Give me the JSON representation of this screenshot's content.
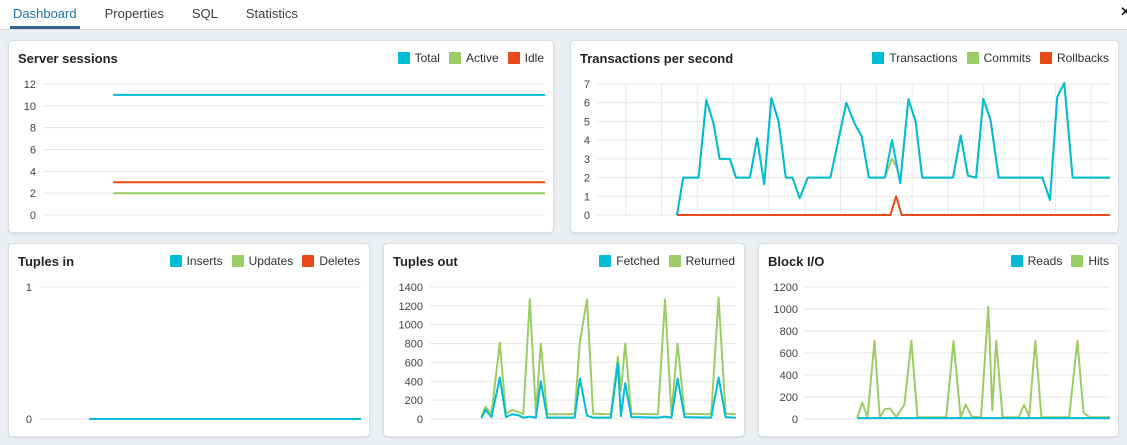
{
  "tab_bar": {
    "tabs": [
      {
        "label": "Dashboard",
        "active": true
      },
      {
        "label": "Properties",
        "active": false
      },
      {
        "label": "SQL",
        "active": false
      },
      {
        "label": "Statistics",
        "active": false
      }
    ],
    "close_label": "✕"
  },
  "colors": {
    "active_tab_text": "#1d73a8",
    "active_tab_underline": "#326690",
    "series_cyan": "#00bcd4",
    "series_green": "#9ccc65",
    "series_orange": "#e64a19",
    "gridline": "#e6e6e6",
    "panel_background": "#ffffff",
    "page_background": "#eceff2"
  },
  "chart_data": [
    {
      "type": "line",
      "title": "Server sessions",
      "xlabel": "",
      "ylabel": "",
      "ylim": [
        0,
        12
      ],
      "yticks": [
        0,
        2,
        4,
        6,
        8,
        10,
        12
      ],
      "grid": true,
      "legend_position": "top-right",
      "series": [
        {
          "name": "Total",
          "color": "#00bcd4",
          "points": [
            [
              0.14,
              11
            ],
            [
              1,
              11
            ]
          ]
        },
        {
          "name": "Active",
          "color": "#9ccc65",
          "points": [
            [
              0.14,
              2
            ],
            [
              1,
              2
            ]
          ]
        },
        {
          "name": "Idle",
          "color": "#e64a19",
          "points": [
            [
              0.14,
              3
            ],
            [
              1,
              3
            ]
          ]
        }
      ]
    },
    {
      "type": "line",
      "title": "Transactions per second",
      "xlabel": "",
      "ylabel": "",
      "ylim": [
        0,
        7
      ],
      "yticks": [
        0,
        1,
        2,
        3,
        4,
        5,
        6,
        7
      ],
      "grid": true,
      "legend_position": "top-right",
      "series": [
        {
          "name": "Transactions",
          "color": "#00bcd4",
          "points": [
            [
              0.156,
              0
            ],
            [
              0.168,
              2
            ],
            [
              0.198,
              2
            ],
            [
              0.213,
              6.15
            ],
            [
              0.227,
              4.9
            ],
            [
              0.239,
              3
            ],
            [
              0.259,
              3
            ],
            [
              0.271,
              2
            ],
            [
              0.298,
              2
            ],
            [
              0.312,
              4.1
            ],
            [
              0.326,
              1.65
            ],
            [
              0.34,
              6.25
            ],
            [
              0.354,
              5.0
            ],
            [
              0.368,
              2
            ],
            [
              0.381,
              2
            ],
            [
              0.395,
              0.9
            ],
            [
              0.411,
              2
            ],
            [
              0.455,
              2
            ],
            [
              0.486,
              6.0
            ],
            [
              0.502,
              4.9
            ],
            [
              0.516,
              4.2
            ],
            [
              0.53,
              2
            ],
            [
              0.561,
              2
            ],
            [
              0.575,
              4.0
            ],
            [
              0.591,
              1.7
            ],
            [
              0.607,
              6.2
            ],
            [
              0.621,
              5.0
            ],
            [
              0.634,
              2
            ],
            [
              0.694,
              2
            ],
            [
              0.709,
              4.25
            ],
            [
              0.723,
              2.1
            ],
            [
              0.739,
              2
            ],
            [
              0.753,
              6.2
            ],
            [
              0.767,
              5.1
            ],
            [
              0.783,
              2
            ],
            [
              0.868,
              2
            ],
            [
              0.883,
              0.8
            ],
            [
              0.897,
              6.3
            ],
            [
              0.911,
              7.05
            ],
            [
              0.927,
              2
            ],
            [
              1,
              2
            ]
          ]
        },
        {
          "name": "Commits",
          "color": "#9ccc65",
          "points": [
            [
              0.156,
              0
            ],
            [
              0.168,
              2
            ],
            [
              0.198,
              2
            ],
            [
              0.213,
              6.15
            ],
            [
              0.227,
              4.9
            ],
            [
              0.239,
              3
            ],
            [
              0.259,
              3
            ],
            [
              0.271,
              2
            ],
            [
              0.298,
              2
            ],
            [
              0.312,
              4.1
            ],
            [
              0.326,
              1.65
            ],
            [
              0.34,
              6.25
            ],
            [
              0.354,
              5.0
            ],
            [
              0.368,
              2
            ],
            [
              0.381,
              2
            ],
            [
              0.395,
              0.9
            ],
            [
              0.411,
              2
            ],
            [
              0.455,
              2
            ],
            [
              0.486,
              6.0
            ],
            [
              0.502,
              4.9
            ],
            [
              0.516,
              4.2
            ],
            [
              0.53,
              2
            ],
            [
              0.561,
              2
            ],
            [
              0.575,
              3.0
            ],
            [
              0.585,
              2.5
            ],
            [
              0.591,
              1.75
            ],
            [
              0.607,
              6.2
            ],
            [
              0.621,
              5.0
            ],
            [
              0.634,
              2
            ],
            [
              0.694,
              2
            ],
            [
              0.709,
              4.25
            ],
            [
              0.723,
              2.1
            ],
            [
              0.739,
              2
            ],
            [
              0.753,
              6.2
            ],
            [
              0.767,
              5.1
            ],
            [
              0.783,
              2
            ],
            [
              0.868,
              2
            ],
            [
              0.883,
              0.8
            ],
            [
              0.897,
              6.3
            ],
            [
              0.911,
              7.05
            ],
            [
              0.927,
              2
            ],
            [
              1,
              2
            ]
          ]
        },
        {
          "name": "Rollbacks",
          "color": "#e64a19",
          "points": [
            [
              0.156,
              0
            ],
            [
              0.572,
              0
            ],
            [
              0.583,
              1.0
            ],
            [
              0.594,
              0
            ],
            [
              1,
              0
            ]
          ]
        }
      ]
    },
    {
      "type": "line",
      "title": "Tuples in",
      "xlabel": "",
      "ylabel": "",
      "ylim": [
        0,
        1
      ],
      "yticks": [
        0,
        1
      ],
      "grid": true,
      "legend_position": "top-right",
      "series": [
        {
          "name": "Inserts",
          "color": "#00bcd4",
          "points": [
            [
              0.156,
              0
            ],
            [
              1,
              0
            ]
          ]
        },
        {
          "name": "Updates",
          "color": "#9ccc65",
          "points": [
            [
              0.156,
              0
            ],
            [
              1,
              0
            ]
          ]
        },
        {
          "name": "Deletes",
          "color": "#e64a19",
          "points": [
            [
              0.156,
              0
            ],
            [
              1,
              0
            ]
          ]
        }
      ]
    },
    {
      "type": "line",
      "title": "Tuples out",
      "xlabel": "",
      "ylabel": "",
      "ylim": [
        0,
        1400
      ],
      "yticks": [
        0,
        200,
        400,
        600,
        800,
        1000,
        1200,
        1400
      ],
      "grid": true,
      "legend_position": "top-right",
      "series": [
        {
          "name": "Fetched",
          "color": "#00bcd4",
          "points": [
            [
              0.168,
              10
            ],
            [
              0.181,
              100
            ],
            [
              0.201,
              20
            ],
            [
              0.228,
              440
            ],
            [
              0.248,
              20
            ],
            [
              0.268,
              50
            ],
            [
              0.289,
              40
            ],
            [
              0.305,
              15
            ],
            [
              0.326,
              25
            ],
            [
              0.346,
              15
            ],
            [
              0.362,
              400
            ],
            [
              0.383,
              15
            ],
            [
              0.453,
              15
            ],
            [
              0.473,
              15
            ],
            [
              0.49,
              430
            ],
            [
              0.513,
              35
            ],
            [
              0.533,
              15
            ],
            [
              0.591,
              15
            ],
            [
              0.614,
              590
            ],
            [
              0.624,
              30
            ],
            [
              0.638,
              380
            ],
            [
              0.658,
              20
            ],
            [
              0.745,
              15
            ],
            [
              0.768,
              25
            ],
            [
              0.789,
              15
            ],
            [
              0.809,
              430
            ],
            [
              0.832,
              20
            ],
            [
              0.919,
              15
            ],
            [
              0.943,
              440
            ],
            [
              0.966,
              20
            ],
            [
              1,
              15
            ]
          ]
        },
        {
          "name": "Returned",
          "color": "#9ccc65",
          "points": [
            [
              0.168,
              20
            ],
            [
              0.181,
              130
            ],
            [
              0.201,
              55
            ],
            [
              0.228,
              810
            ],
            [
              0.248,
              55
            ],
            [
              0.268,
              95
            ],
            [
              0.289,
              75
            ],
            [
              0.305,
              50
            ],
            [
              0.326,
              1270
            ],
            [
              0.346,
              60
            ],
            [
              0.362,
              800
            ],
            [
              0.383,
              50
            ],
            [
              0.453,
              50
            ],
            [
              0.473,
              55
            ],
            [
              0.49,
              820
            ],
            [
              0.513,
              1270
            ],
            [
              0.533,
              55
            ],
            [
              0.591,
              50
            ],
            [
              0.614,
              660
            ],
            [
              0.624,
              300
            ],
            [
              0.638,
              800
            ],
            [
              0.658,
              55
            ],
            [
              0.745,
              50
            ],
            [
              0.768,
              1270
            ],
            [
              0.789,
              55
            ],
            [
              0.809,
              800
            ],
            [
              0.832,
              55
            ],
            [
              0.919,
              50
            ],
            [
              0.943,
              1290
            ],
            [
              0.966,
              55
            ],
            [
              1,
              50
            ]
          ]
        }
      ]
    },
    {
      "type": "line",
      "title": "Block I/O",
      "xlabel": "",
      "ylabel": "",
      "ylim": [
        0,
        1200
      ],
      "yticks": [
        0,
        200,
        400,
        600,
        800,
        1000,
        1200
      ],
      "grid": true,
      "legend_position": "top-right",
      "series": [
        {
          "name": "Reads",
          "color": "#00bcd4",
          "points": [
            [
              0.171,
              8
            ],
            [
              1,
              8
            ]
          ]
        },
        {
          "name": "Hits",
          "color": "#9ccc65",
          "points": [
            [
              0.171,
              10
            ],
            [
              0.188,
              150
            ],
            [
              0.205,
              15
            ],
            [
              0.228,
              710
            ],
            [
              0.245,
              15
            ],
            [
              0.262,
              90
            ],
            [
              0.279,
              95
            ],
            [
              0.299,
              20
            ],
            [
              0.326,
              130
            ],
            [
              0.349,
              710
            ],
            [
              0.369,
              15
            ],
            [
              0.463,
              15
            ],
            [
              0.487,
              710
            ],
            [
              0.51,
              15
            ],
            [
              0.527,
              130
            ],
            [
              0.547,
              20
            ],
            [
              0.577,
              15
            ],
            [
              0.601,
              1020
            ],
            [
              0.614,
              80
            ],
            [
              0.627,
              710
            ],
            [
              0.648,
              15
            ],
            [
              0.701,
              15
            ],
            [
              0.718,
              130
            ],
            [
              0.735,
              20
            ],
            [
              0.755,
              710
            ],
            [
              0.775,
              15
            ],
            [
              0.866,
              15
            ],
            [
              0.893,
              710
            ],
            [
              0.913,
              60
            ],
            [
              0.933,
              15
            ],
            [
              1,
              15
            ]
          ]
        }
      ]
    }
  ]
}
